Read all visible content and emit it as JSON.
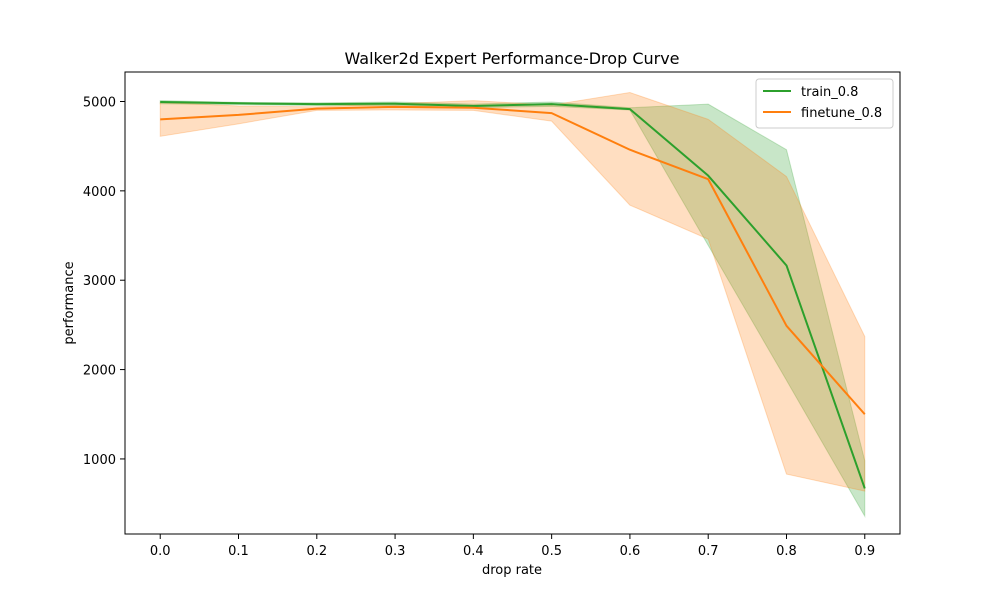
{
  "chart_data": {
    "type": "line",
    "title": "Walker2d Expert Performance-Drop Curve",
    "xlabel": "drop rate",
    "ylabel": "performance",
    "x": [
      0.0,
      0.1,
      0.2,
      0.3,
      0.4,
      0.5,
      0.6,
      0.7,
      0.8,
      0.9
    ],
    "x_ticks": [
      "0.0",
      "0.1",
      "0.2",
      "0.3",
      "0.4",
      "0.5",
      "0.6",
      "0.7",
      "0.8",
      "0.9"
    ],
    "y_ticks": [
      1000,
      2000,
      3000,
      4000,
      5000
    ],
    "y_tick_labels": [
      "1000",
      "2000",
      "3000",
      "4000",
      "5000"
    ],
    "xlim": [
      -0.045,
      0.945
    ],
    "ylim": [
      160,
      5330
    ],
    "grid": false,
    "legend_position": "top-right",
    "series": [
      {
        "name": "train_0.8",
        "color": "#2ca02c",
        "band_color": "#2ca02c",
        "values": [
          4995,
          4980,
          4970,
          4975,
          4950,
          4970,
          4915,
          4170,
          3165,
          670
        ],
        "lower": [
          4975,
          4965,
          4955,
          4955,
          4930,
          4945,
          4905,
          3390,
          1880,
          360
        ],
        "upper": [
          5010,
          4990,
          4985,
          4995,
          4970,
          4995,
          4930,
          4970,
          4460,
          980
        ]
      },
      {
        "name": "finetune_0.8",
        "color": "#ff7f0e",
        "band_color": "#ff7f0e",
        "values": [
          4800,
          4850,
          4920,
          4940,
          4930,
          4870,
          4460,
          4130,
          2490,
          1500
        ],
        "lower": [
          4610,
          4750,
          4900,
          4905,
          4900,
          4780,
          3840,
          3460,
          830,
          640
        ],
        "upper": [
          4990,
          4950,
          4940,
          4975,
          5010,
          4960,
          5100,
          4800,
          4160,
          2370
        ]
      }
    ]
  }
}
